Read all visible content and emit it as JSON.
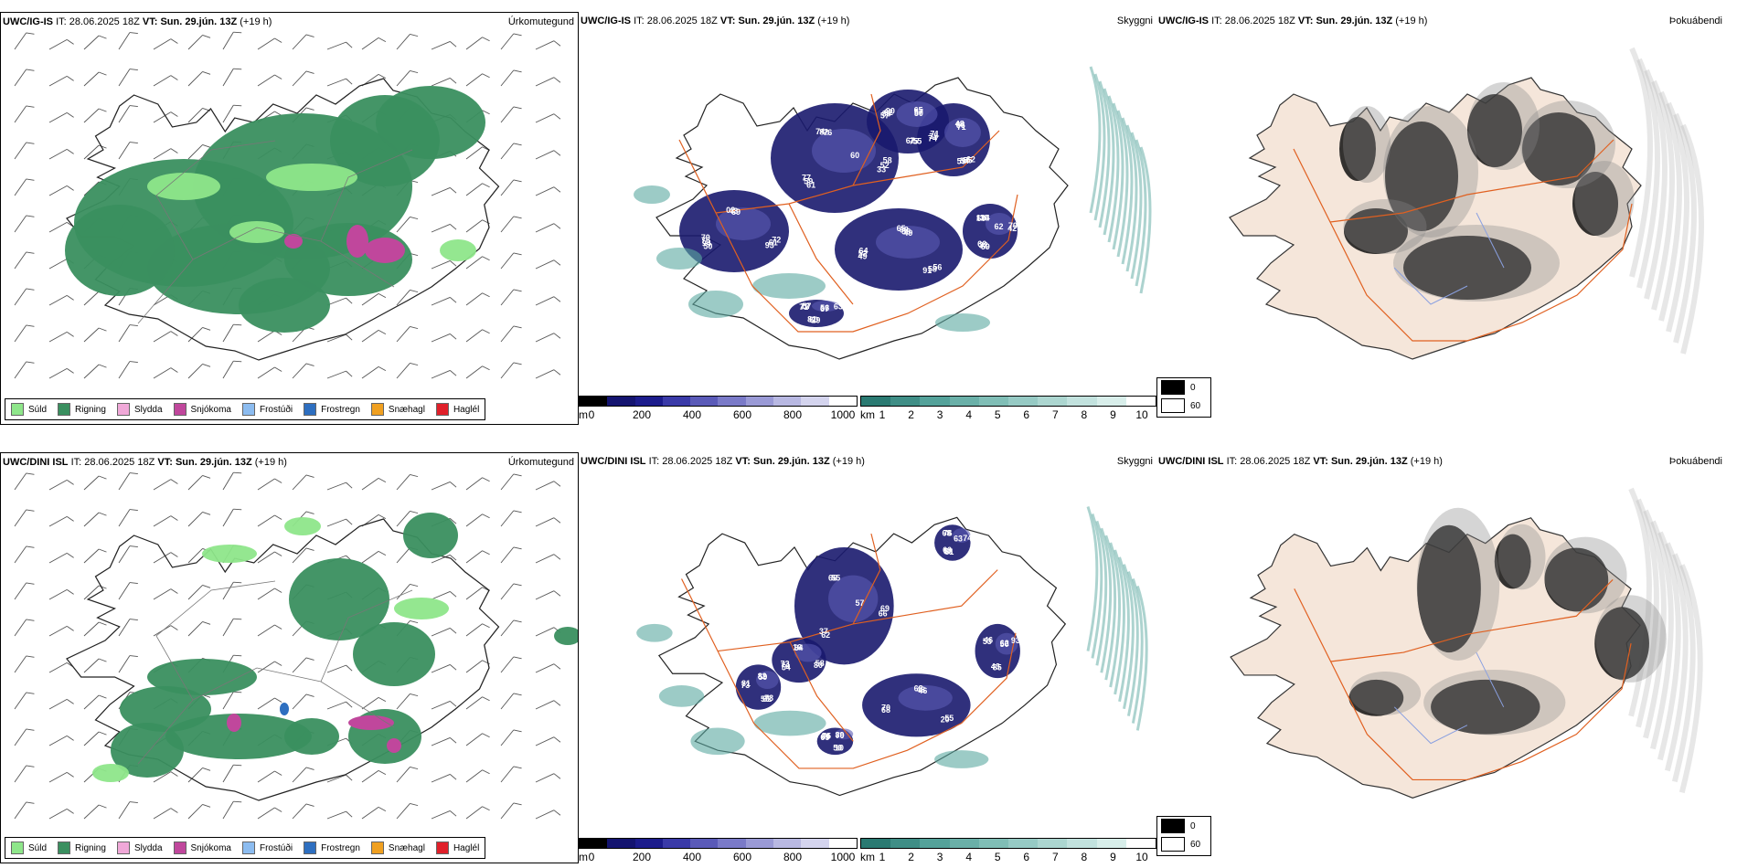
{
  "colors": {
    "rigning": "#3a8f5f",
    "suld": "#8ee68a",
    "slydda": "#f0a8d8",
    "snjokoma": "#c0479c",
    "frostudi": "#8cbcf0",
    "frostregn": "#2e6fc0",
    "snaehagl": "#f0a020",
    "haglel": "#e0202a",
    "land": "#f5e6da",
    "roads": "#e06020",
    "cloud_dark": "#1a1a6e",
    "cloud_mid": "#5a5ab4",
    "vis_teal": "#5aa8a0"
  },
  "rows": [
    {
      "model": "UWC/IG-IS",
      "it_label": "IT:",
      "it_value": "28.06.2025 18Z",
      "vt_label": "VT:",
      "vt_value": "Sun. 29.jún. 13Z",
      "lead": "(+19 h)",
      "titles": [
        "Úrkomutegund",
        "Skyggni",
        "Þokuábendi"
      ],
      "cloud_labels": [
        "60",
        "50",
        "65",
        "62",
        "57",
        "56",
        "69",
        "74",
        "72",
        "49",
        "48",
        "55",
        "71",
        "62",
        "61",
        "02",
        "56",
        "74",
        "65",
        "29",
        "60",
        "58",
        "94",
        "68",
        "55",
        "80",
        "67",
        "32",
        "82",
        "61",
        "52",
        "66",
        "75",
        "77",
        "70",
        "59",
        "43",
        "58",
        "35",
        "57",
        "60",
        "124",
        "52",
        "76",
        "56",
        "54",
        "62",
        "63",
        "66",
        "76",
        "93",
        "64",
        "71",
        "67",
        "57",
        "42",
        "77",
        "69",
        "91",
        "71",
        "50",
        "81",
        "35",
        "33",
        "70",
        "49",
        "59",
        "90"
      ]
    },
    {
      "model": "UWC/DINI ISL",
      "it_label": "IT:",
      "it_value": "28.06.2025 18Z",
      "vt_label": "VT:",
      "vt_value": "Sun. 29.jún. 13Z",
      "lead": "(+19 h)",
      "titles": [
        "Úrkomutegund",
        "Skyggni",
        "Þokuábendi"
      ],
      "cloud_labels": [
        "57",
        "54",
        "63",
        "73",
        "65",
        "62",
        "61",
        "66",
        "58",
        "68",
        "82",
        "10",
        "53",
        "63",
        "62",
        "16",
        "55",
        "73",
        "89",
        "85",
        "68",
        "69",
        "74",
        "48",
        "62",
        "66",
        "50",
        "58",
        "55",
        "80",
        "70",
        "59",
        "50",
        "46",
        "74",
        "37",
        "84",
        "20",
        "81",
        "70",
        "43",
        "76",
        "66",
        "73",
        "46",
        "59",
        "75",
        "93",
        "66"
      ]
    }
  ],
  "legend": {
    "items": [
      {
        "label": "Súld",
        "color_key": "suld"
      },
      {
        "label": "Rigning",
        "color_key": "rigning"
      },
      {
        "label": "Slydda",
        "color_key": "slydda"
      },
      {
        "label": "Snjókoma",
        "color_key": "snjokoma"
      },
      {
        "label": "Frostúði",
        "color_key": "frostudi"
      },
      {
        "label": "Frostregn",
        "color_key": "frostregn"
      },
      {
        "label": "Snæhagl",
        "color_key": "snaehagl"
      },
      {
        "label": "Haglél",
        "color_key": "haglel"
      }
    ]
  },
  "cloud_bar": {
    "unit": "m",
    "ticks": [
      "0",
      "200",
      "400",
      "600",
      "800",
      "1000"
    ]
  },
  "vis_bar": {
    "unit": "km",
    "ticks": [
      "1",
      "2",
      "3",
      "4",
      "5",
      "6",
      "7",
      "8",
      "9",
      "10"
    ]
  },
  "fog_legend": {
    "low": "0",
    "high": "60"
  }
}
